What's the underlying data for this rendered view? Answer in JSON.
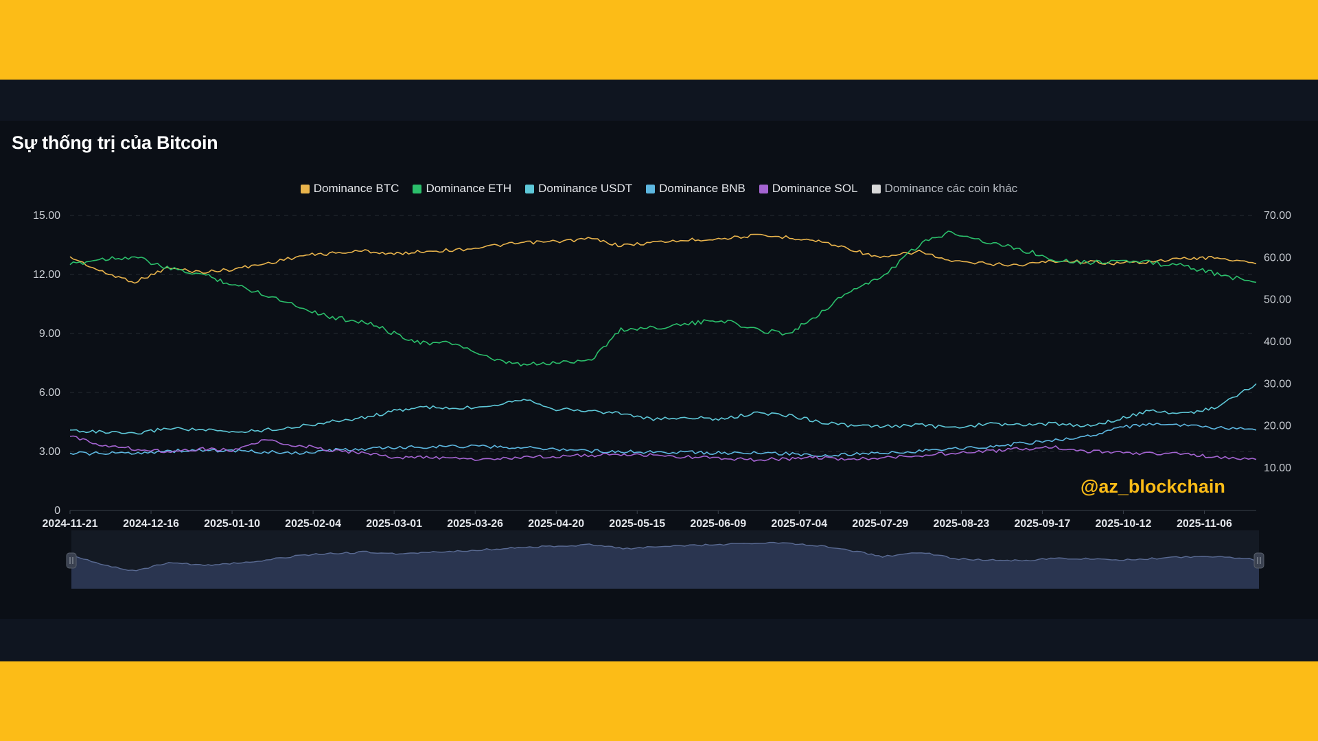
{
  "title": "Sự thống trị của Bitcoin",
  "watermark": "@az_blockchain",
  "legend": [
    {
      "label": "Dominance BTC",
      "color": "#E9B44C"
    },
    {
      "label": "Dominance ETH",
      "color": "#2BBF6B"
    },
    {
      "label": "Dominance USDT",
      "color": "#5EC8D8"
    },
    {
      "label": "Dominance BNB",
      "color": "#5DB7E0"
    },
    {
      "label": "Dominance SOL",
      "color": "#A464D1"
    },
    {
      "label": "Dominance các coin khác",
      "color": "#D9D9D9"
    }
  ],
  "chart_data": {
    "type": "line",
    "title": "Sự thống trị của Bitcoin",
    "x_ticks": [
      "2024-11-21",
      "2024-12-16",
      "2025-01-10",
      "2025-02-04",
      "2025-03-01",
      "2025-03-26",
      "2025-04-20",
      "2025-05-15",
      "2025-06-09",
      "2025-07-04",
      "2025-07-29",
      "2025-08-23",
      "2025-09-17",
      "2025-10-12",
      "2025-11-06"
    ],
    "x_range": [
      "2024-11-21",
      "2025-11-22"
    ],
    "y_left": {
      "range": [
        0,
        15
      ],
      "ticks": [
        "0",
        "3.00",
        "6.00",
        "9.00",
        "12.00",
        "15.00"
      ]
    },
    "y_right": {
      "range": [
        0,
        70
      ],
      "ticks": [
        "10.00",
        "20.00",
        "30.00",
        "40.00",
        "50.00",
        "60.00",
        "70.00"
      ]
    },
    "grid": true,
    "legend_position": "top-center",
    "series": [
      {
        "name": "Dominance BTC",
        "axis": "right",
        "color": "#E9B44C",
        "x": [
          "2024-11-21",
          "2024-12-01",
          "2024-12-11",
          "2024-12-21",
          "2025-01-01",
          "2025-01-10",
          "2025-01-20",
          "2025-02-01",
          "2025-02-10",
          "2025-02-20",
          "2025-03-01",
          "2025-03-10",
          "2025-03-20",
          "2025-04-01",
          "2025-04-10",
          "2025-04-20",
          "2025-05-01",
          "2025-05-10",
          "2025-05-20",
          "2025-06-01",
          "2025-06-10",
          "2025-06-20",
          "2025-07-01",
          "2025-07-10",
          "2025-07-20",
          "2025-07-29",
          "2025-08-10",
          "2025-08-20",
          "2025-09-01",
          "2025-09-10",
          "2025-09-20",
          "2025-10-01",
          "2025-10-10",
          "2025-10-20",
          "2025-11-01",
          "2025-11-10",
          "2025-11-22"
        ],
        "values": [
          60.2,
          56.5,
          54.2,
          57.5,
          56.5,
          57.2,
          58.5,
          60.5,
          61.0,
          61.6,
          60.8,
          61.5,
          61.8,
          62.8,
          63.5,
          63.8,
          64.5,
          62.8,
          63.6,
          64.2,
          64.5,
          65.2,
          64.8,
          63.9,
          62.0,
          59.8,
          61.5,
          59.0,
          58.5,
          58.2,
          59.2,
          59.0,
          58.6,
          59.0,
          59.8,
          60.0,
          58.5
        ]
      },
      {
        "name": "Dominance ETH",
        "axis": "left",
        "color": "#2BBF6B",
        "x": [
          "2024-11-21",
          "2024-12-01",
          "2024-12-11",
          "2024-12-21",
          "2025-01-01",
          "2025-01-10",
          "2025-01-20",
          "2025-02-01",
          "2025-02-10",
          "2025-02-20",
          "2025-03-01",
          "2025-03-10",
          "2025-03-20",
          "2025-04-01",
          "2025-04-10",
          "2025-04-20",
          "2025-05-01",
          "2025-05-10",
          "2025-05-20",
          "2025-06-01",
          "2025-06-10",
          "2025-06-20",
          "2025-07-01",
          "2025-07-10",
          "2025-07-20",
          "2025-07-29",
          "2025-08-10",
          "2025-08-20",
          "2025-09-01",
          "2025-09-10",
          "2025-09-20",
          "2025-10-01",
          "2025-10-10",
          "2025-10-20",
          "2025-11-01",
          "2025-11-10",
          "2025-11-22"
        ],
        "values": [
          12.5,
          12.8,
          12.9,
          12.3,
          12.0,
          11.5,
          11.0,
          10.3,
          9.8,
          9.6,
          9.0,
          8.5,
          8.5,
          7.6,
          7.4,
          7.5,
          7.7,
          9.2,
          9.3,
          9.5,
          9.7,
          9.2,
          9.0,
          10.0,
          11.2,
          11.8,
          13.5,
          14.2,
          13.6,
          13.3,
          12.8,
          12.6,
          12.7,
          12.6,
          12.4,
          12.0,
          11.6
        ]
      },
      {
        "name": "Dominance USDT",
        "axis": "right",
        "color": "#5EC8D8",
        "x": [
          "2024-11-21",
          "2024-12-01",
          "2024-12-11",
          "2024-12-21",
          "2025-01-01",
          "2025-01-10",
          "2025-01-20",
          "2025-02-01",
          "2025-02-10",
          "2025-02-20",
          "2025-03-01",
          "2025-03-10",
          "2025-03-20",
          "2025-04-01",
          "2025-04-10",
          "2025-04-20",
          "2025-05-01",
          "2025-05-10",
          "2025-05-20",
          "2025-06-01",
          "2025-06-10",
          "2025-06-20",
          "2025-07-01",
          "2025-07-10",
          "2025-07-20",
          "2025-07-29",
          "2025-08-10",
          "2025-08-20",
          "2025-09-01",
          "2025-09-10",
          "2025-09-20",
          "2025-10-01",
          "2025-10-10",
          "2025-10-20",
          "2025-11-01",
          "2025-11-10",
          "2025-11-22"
        ],
        "values": [
          19.0,
          18.5,
          18.0,
          19.5,
          19.0,
          18.5,
          19.0,
          20.0,
          21.0,
          22.0,
          23.5,
          24.5,
          24.0,
          25.0,
          26.5,
          24.0,
          23.5,
          23.0,
          21.5,
          22.0,
          21.5,
          23.0,
          22.5,
          21.0,
          20.0,
          19.8,
          20.2,
          19.5,
          20.5,
          20.2,
          20.5,
          20.0,
          21.5,
          23.5,
          23.0,
          24.5,
          30.0
        ]
      },
      {
        "name": "Dominance BNB",
        "axis": "right",
        "color": "#5DB7E0",
        "x": [
          "2024-11-21",
          "2024-12-01",
          "2024-12-11",
          "2024-12-21",
          "2025-01-01",
          "2025-01-10",
          "2025-01-20",
          "2025-02-01",
          "2025-02-10",
          "2025-02-20",
          "2025-03-01",
          "2025-03-10",
          "2025-03-20",
          "2025-04-01",
          "2025-04-10",
          "2025-04-20",
          "2025-05-01",
          "2025-05-10",
          "2025-05-20",
          "2025-06-01",
          "2025-06-10",
          "2025-06-20",
          "2025-07-01",
          "2025-07-10",
          "2025-07-20",
          "2025-07-29",
          "2025-08-10",
          "2025-08-20",
          "2025-09-01",
          "2025-09-10",
          "2025-09-20",
          "2025-10-01",
          "2025-10-10",
          "2025-10-20",
          "2025-11-01",
          "2025-11-10",
          "2025-11-22"
        ],
        "values": [
          13.5,
          13.4,
          13.6,
          14.0,
          14.2,
          14.0,
          13.8,
          13.5,
          14.2,
          14.5,
          14.8,
          15.0,
          15.2,
          15.0,
          14.8,
          14.5,
          14.0,
          13.9,
          13.8,
          13.7,
          13.6,
          13.5,
          13.4,
          13.0,
          13.2,
          13.5,
          14.0,
          14.5,
          15.0,
          15.8,
          16.5,
          17.5,
          19.5,
          20.5,
          20.0,
          19.5,
          19.0
        ]
      },
      {
        "name": "Dominance SOL",
        "axis": "right",
        "color": "#A464D1",
        "x": [
          "2024-11-21",
          "2024-12-01",
          "2024-12-11",
          "2024-12-21",
          "2025-01-01",
          "2025-01-10",
          "2025-01-20",
          "2025-02-01",
          "2025-02-10",
          "2025-02-20",
          "2025-03-01",
          "2025-03-10",
          "2025-03-20",
          "2025-04-01",
          "2025-04-10",
          "2025-04-20",
          "2025-05-01",
          "2025-05-10",
          "2025-05-20",
          "2025-06-01",
          "2025-06-10",
          "2025-06-20",
          "2025-07-01",
          "2025-07-10",
          "2025-07-20",
          "2025-07-29",
          "2025-08-10",
          "2025-08-20",
          "2025-09-01",
          "2025-09-10",
          "2025-09-20",
          "2025-10-01",
          "2025-10-10",
          "2025-10-20",
          "2025-11-01",
          "2025-11-10",
          "2025-11-22"
        ],
        "values": [
          17.5,
          15.5,
          14.5,
          14.0,
          14.5,
          14.2,
          16.5,
          15.2,
          14.2,
          13.5,
          12.5,
          12.5,
          12.2,
          12.0,
          12.5,
          12.8,
          13.0,
          13.2,
          13.0,
          12.5,
          12.3,
          12.0,
          12.2,
          12.5,
          12.0,
          12.5,
          13.0,
          13.5,
          14.0,
          14.5,
          15.0,
          14.0,
          13.5,
          13.5,
          13.2,
          12.5,
          12.0
        ]
      },
      {
        "name": "Dominance các coin khác",
        "axis": "right",
        "color": "#D9D9D9",
        "x": [],
        "values": []
      }
    ],
    "navigator": {
      "series": "Dominance BTC",
      "range": [
        "2024-11-21",
        "2025-11-22"
      ]
    }
  }
}
